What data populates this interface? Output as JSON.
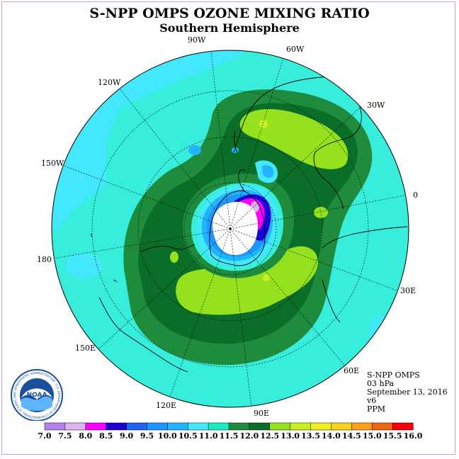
{
  "title": "S-NPP OMPS OZONE MIXING RATIO",
  "subtitle": "Southern Hemisphere",
  "longitude_labels": [
    {
      "text": "90W",
      "lon": -90
    },
    {
      "text": "60W",
      "lon": -60
    },
    {
      "text": "30W",
      "lon": -30
    },
    {
      "text": "0",
      "lon": 0
    },
    {
      "text": "30E",
      "lon": 30
    },
    {
      "text": "60E",
      "lon": 60
    },
    {
      "text": "90E",
      "lon": 90
    },
    {
      "text": "120E",
      "lon": 120
    },
    {
      "text": "150E",
      "lon": 150
    },
    {
      "text": "180",
      "lon": 180
    },
    {
      "text": "150W",
      "lon": -150
    },
    {
      "text": "120W",
      "lon": -120
    }
  ],
  "info": {
    "instrument": "S-NPP OMPS",
    "level": "03 hPa",
    "date": "September 13, 2016",
    "version": "v6",
    "units": "PPM"
  },
  "logo": {
    "text": "NOAA",
    "ring_text": "NATIONAL OCEANIC AND ATMOSPHERIC ADMINISTRATION · U.S. DEPARTMENT OF COMMERCE"
  },
  "colorbar": {
    "ticks": [
      "7.0",
      "7.5",
      "8.0",
      "8.5",
      "9.0",
      "9.5",
      "10.0",
      "10.5",
      "11.0",
      "11.5",
      "12.0",
      "12.5",
      "13.0",
      "13.5",
      "14.0",
      "14.5",
      "15.0",
      "15.5",
      "16.0"
    ],
    "colors": [
      "#b480ec",
      "#dcb4f0",
      "#ff00ff",
      "#1c00d4",
      "#1e64f0",
      "#1e96ff",
      "#23b4ff",
      "#43e8ff",
      "#18ecc0",
      "#1e8c3c",
      "#0b6e28",
      "#96e11e",
      "#c8f01e",
      "#f0f01e",
      "#fad21e",
      "#faa019",
      "#f06414",
      "#fa0000",
      "#8c4b32"
    ]
  },
  "colors": {
    "ocean_background": "#37eedd",
    "frame": "#c8a0d0",
    "coastline": "#000000"
  }
}
